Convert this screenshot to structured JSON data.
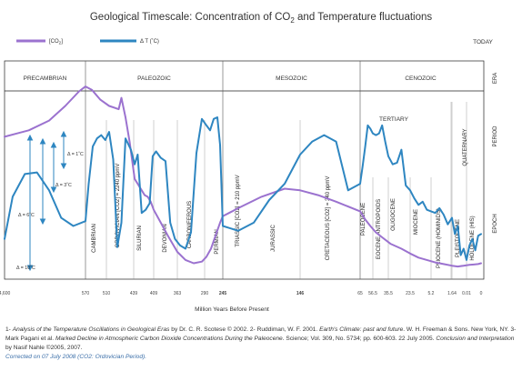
{
  "chart_data": {
    "type": "line",
    "title_parts": [
      "Geological Timescale: Concentration of CO",
      "2",
      " and Temperature fluctuations"
    ],
    "legend": {
      "co2": {
        "label_parts": [
          "[CO",
          "2",
          "]"
        ],
        "color": "#9b72cf"
      },
      "temp": {
        "label": "Δ T (˚C)",
        "color": "#2e86c1"
      }
    },
    "today_label": "TODAY",
    "row_labels": {
      "era": "ERA",
      "period": "PERIOD",
      "epoch": "EPOCH"
    },
    "x_axis": {
      "label": "Million Years Before Present",
      "ticks": [
        "4,600",
        "570",
        "510",
        "439",
        "409",
        "363",
        "290",
        "245",
        "146",
        "65",
        "56.5",
        "35.5",
        "23.5",
        "5.2",
        "1.64",
        "0.01",
        "0"
      ]
    },
    "eras": [
      {
        "label": "PRECAMBRIAN",
        "from": 0,
        "to": 1
      },
      {
        "label": "PALEOZOIC",
        "from": 1,
        "to": 7
      },
      {
        "label": "MESOZOIC",
        "from": 7,
        "to": 9
      },
      {
        "label": "CENOZOIC",
        "from": 9,
        "to": 16
      }
    ],
    "periods": [
      {
        "label": "TERTIARY",
        "orientation": "horizontal"
      },
      {
        "label": "QUATERNARY",
        "orientation": "vertical"
      }
    ],
    "epochs": [
      {
        "label": "CAMBRIAN"
      },
      {
        "label": "ORDOVICIAN [CO2] = 2240 ppmV"
      },
      {
        "label": "SILURIAN"
      },
      {
        "label": "DEVONIAN"
      },
      {
        "label": "CARBONIFEROUS"
      },
      {
        "label": "PERMIAN"
      },
      {
        "label": "TRIASSIC [CO2] = 210 ppmV"
      },
      {
        "label": "JURASSIC"
      },
      {
        "label": "CRETACEOUS [CO2] = 340 ppmV"
      },
      {
        "label": "PALEOCENE"
      },
      {
        "label": "EOCENE ANTROPOIDS"
      },
      {
        "label": "OLIGOCENE"
      },
      {
        "label": "MIOCENE"
      },
      {
        "label": "PLIOCENE (HOMINIDS)"
      },
      {
        "label": "PLEISTOCENE"
      },
      {
        "label": "HOLOCENE (HIS)"
      }
    ],
    "temperature_scale": [
      "Δ = 1˚C",
      "Δ = 3˚C",
      "Δ = 6˚C",
      "Δ = 10˚C"
    ],
    "series": [
      {
        "name": "[CO2]",
        "tick_pos": [
          0.0,
          0.15,
          0.3,
          0.55,
          0.75,
          0.92,
          1.0,
          1.3,
          1.7,
          2.1,
          2.45,
          2.55,
          2.7,
          2.85,
          3.05,
          3.2,
          3.4,
          3.55,
          3.7,
          3.85,
          4.0,
          4.3,
          4.6,
          5.0,
          5.3,
          5.6,
          5.9,
          6.1,
          6.35,
          6.6,
          6.85,
          7.0,
          7.2,
          7.5,
          7.8,
          8.0,
          8.3,
          8.6,
          9.0,
          9.4,
          9.8,
          10.2,
          10.6,
          11.1,
          11.6,
          12.0,
          12.4,
          12.8,
          13.2,
          13.6,
          14.0,
          14.4,
          14.8,
          15.2,
          15.5,
          15.8,
          16.0
        ],
        "values": [
          8.5,
          8.7,
          8.9,
          9.5,
          10.4,
          11.3,
          11.6,
          11.4,
          10.8,
          10.4,
          10.2,
          10.9,
          9.7,
          8.2,
          5.9,
          5.6,
          5.2,
          4.9,
          4.8,
          4.5,
          4.0,
          3.2,
          2.4,
          1.4,
          0.9,
          0.7,
          0.8,
          1.1,
          1.6,
          2.4,
          3.2,
          3.6,
          4.1,
          4.8,
          5.3,
          5.2,
          4.9,
          4.5,
          3.9,
          3.4,
          3.0,
          2.6,
          2.3,
          1.9,
          1.6,
          1.3,
          1.05,
          0.9,
          0.75,
          0.65,
          0.55,
          0.5,
          0.55,
          0.6,
          0.62,
          0.65,
          0.7
        ]
      },
      {
        "name": "Δ T (˚C)",
        "tick_pos": [
          0.0,
          0.1,
          0.25,
          0.4,
          0.55,
          0.7,
          0.85,
          1.0,
          1.15,
          1.35,
          1.55,
          1.75,
          1.95,
          2.1,
          2.25,
          2.4,
          2.55,
          2.7,
          2.9,
          3.05,
          3.2,
          3.4,
          3.6,
          3.8,
          3.95,
          4.1,
          4.3,
          4.5,
          4.7,
          4.9,
          5.1,
          5.3,
          5.5,
          5.7,
          5.9,
          6.1,
          6.3,
          6.5,
          6.7,
          6.85,
          7.0,
          7.2,
          7.4,
          7.6,
          7.8,
          8.0,
          8.2,
          8.4,
          8.6,
          8.8,
          9.0,
          9.2,
          9.4,
          9.6,
          9.8,
          10.0,
          10.2,
          10.4,
          10.6,
          10.8,
          11.0,
          11.2,
          11.4,
          11.6,
          11.8,
          12.0,
          12.2,
          12.4,
          12.6,
          12.8,
          13.0,
          13.2,
          13.4,
          13.6,
          13.8,
          14.0,
          14.2,
          14.4,
          14.6,
          14.8,
          15.0,
          15.2,
          15.4,
          15.6,
          15.8,
          16.0
        ],
        "values": [
          2.2,
          4.8,
          6.2,
          6.3,
          5.2,
          3.5,
          3.0,
          3.3,
          5.6,
          7.9,
          8.4,
          8.6,
          8.3,
          8.8,
          7.1,
          1.7,
          3.2,
          8.4,
          7.7,
          6.8,
          7.4,
          3.8,
          4.0,
          4.4,
          7.3,
          7.6,
          7.2,
          7.0,
          3.2,
          2.2,
          1.8,
          1.6,
          2.6,
          7.5,
          9.6,
          9.2,
          8.9,
          9.6,
          9.7,
          8.0,
          3.0,
          2.7,
          3.2,
          4.6,
          5.6,
          7.4,
          8.2,
          8.6,
          8.2,
          5.2,
          5.6,
          6.7,
          7.9,
          9.2,
          9.0,
          8.7,
          8.6,
          8.7,
          9.2,
          8.2,
          7.3,
          6.8,
          6.9,
          7.7,
          5.5,
          5.2,
          4.7,
          4.3,
          4.5,
          4.0,
          3.9,
          3.8,
          4.1,
          3.7,
          3.1,
          3.5,
          2.5,
          3.0,
          1.2,
          1.6,
          0.9,
          1.8,
          2.2,
          1.5,
          2.4,
          2.5
        ]
      }
    ],
    "ylim": [
      0,
      12
    ]
  },
  "footnote": {
    "p1": "1- ",
    "p2": "Analysis of the Temperature Oscillations in Geological Eras",
    "p3": " by Dr. C. R. Scotese © 2002. 2- Ruddiman, W. F. 2001. ",
    "p4": "Earth's Climate: past and future",
    "p5": ". W. H. Freeman & Sons. New York, NY. 3- Mark Pagani et al. ",
    "p6": "Marked Decline in Atmospheric Carbon Dioxide Concentrations During the Paleocene",
    "p7": ". Science; Vol. 309, No. 5734; pp. 600-603. 22 July 2005. ",
    "p8": "Conclusion and Interpretation",
    "p9": " by Nasif Nahle ©2005, 2007.",
    "correction": "Corrected on 07 July 2008 (CO2: Ordovician Period)."
  }
}
